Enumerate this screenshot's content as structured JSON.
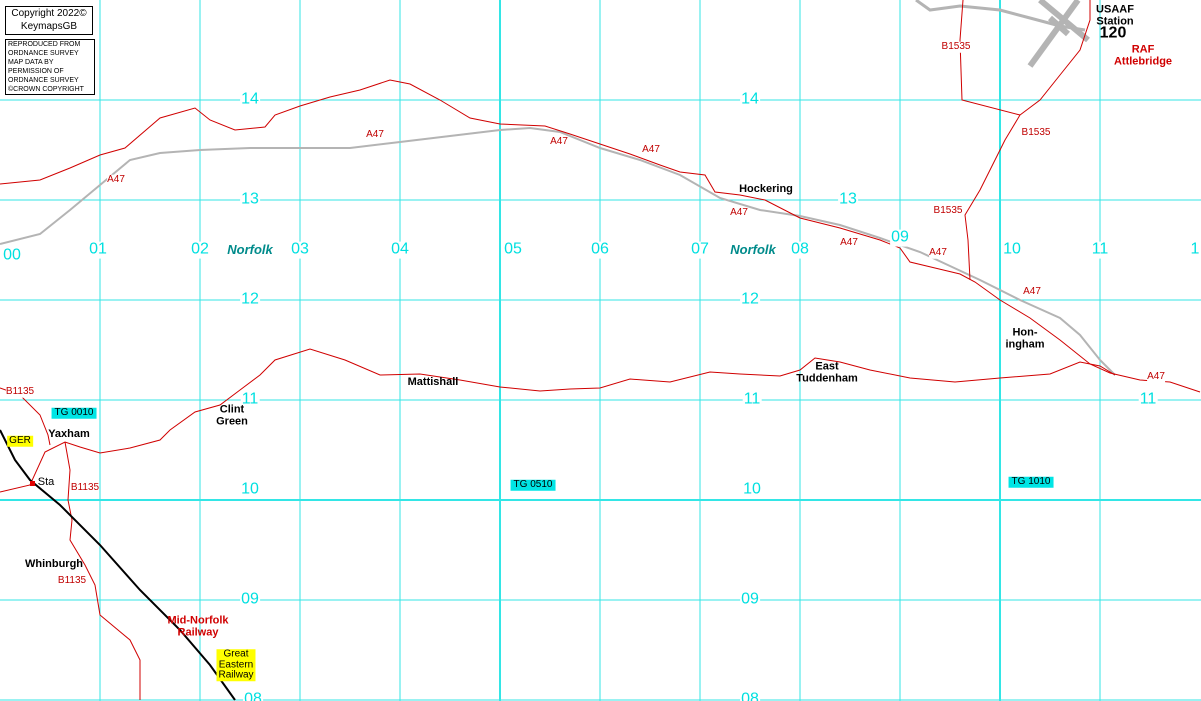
{
  "copyright": {
    "line1": "Copyright 2022©",
    "line2": "KeymapsGB"
  },
  "permission": [
    "REPRODUCED FROM",
    "ORDNANCE SURVEY",
    "MAP DATA BY",
    "PERMISSION OF",
    "ORDNANCE SURVEY",
    "©CROWN COPYRIGHT"
  ],
  "northings": [
    "14",
    "14",
    "13",
    "13",
    "12",
    "12",
    "11",
    "11",
    "11",
    "10",
    "10",
    "09",
    "09",
    "08",
    "08"
  ],
  "eastings": [
    "00",
    "01",
    "02",
    "03",
    "04",
    "05",
    "06",
    "07",
    "08",
    "09",
    "10",
    "11",
    "1"
  ],
  "county": [
    "Norfolk",
    "Norfolk"
  ],
  "places": [
    "USAAF\nStation",
    "120",
    "Hockering",
    "Mattishall",
    "East\nTuddenham",
    "Hon-\ningham",
    "Clint\nGreen",
    "Yaxham",
    "Whinburgh",
    "Sta"
  ],
  "red_places": [
    "RAF\nAttlebridge",
    "Mid-Norfolk\nRailway"
  ],
  "grid_refs": [
    "TG 0010",
    "TG 0510",
    "TG 1010"
  ],
  "railway_tags": [
    "GER",
    "Great\nEastern\nRailway"
  ],
  "roads": [
    "A47",
    "A47",
    "A47",
    "A47",
    "A47",
    "A47",
    "A47",
    "A47",
    "A47",
    "B1535",
    "B1535",
    "B1535",
    "B1135",
    "B1135",
    "B1135"
  ]
}
